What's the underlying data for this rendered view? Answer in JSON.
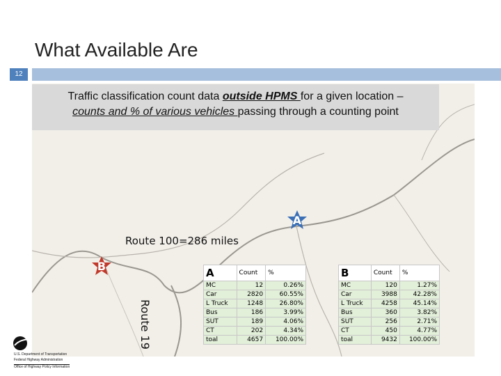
{
  "slide": {
    "title": "What Available Are",
    "number": "12"
  },
  "callout": {
    "line1_prefix": "Traffic classification count data ",
    "line1_underlined": "outside HPMS ",
    "line1_suffix": "for a given location –",
    "line2_underlined": "counts and % of various vehicles ",
    "line2_suffix": "passing through a counting point"
  },
  "map": {
    "route100_label": "Route 100=286 miles",
    "route19_label": "Route 19",
    "marker_a": "A",
    "marker_b": "B"
  },
  "table_a": {
    "title": "A",
    "col_count": "Count",
    "col_pct": "%",
    "rows": [
      {
        "label": "MC",
        "count": "12",
        "pct": "0.26%"
      },
      {
        "label": "Car",
        "count": "2820",
        "pct": "60.55%"
      },
      {
        "label": "L Truck",
        "count": "1248",
        "pct": "26.80%"
      },
      {
        "label": "Bus",
        "count": "186",
        "pct": "3.99%"
      },
      {
        "label": "SUT",
        "count": "189",
        "pct": "4.06%"
      },
      {
        "label": "CT",
        "count": "202",
        "pct": "4.34%"
      },
      {
        "label": "toal",
        "count": "4657",
        "pct": "100.00%"
      }
    ]
  },
  "table_b": {
    "title": "B",
    "col_count": "Count",
    "col_pct": "%",
    "rows": [
      {
        "label": "MC",
        "count": "120",
        "pct": "1.27%"
      },
      {
        "label": "Car",
        "count": "3988",
        "pct": "42.28%"
      },
      {
        "label": "L Truck",
        "count": "4258",
        "pct": "45.14%"
      },
      {
        "label": "Bus",
        "count": "360",
        "pct": "3.82%"
      },
      {
        "label": "SUT",
        "count": "256",
        "pct": "2.71%"
      },
      {
        "label": "CT",
        "count": "450",
        "pct": "4.77%"
      },
      {
        "label": "toal",
        "count": "9432",
        "pct": "100.00%"
      }
    ]
  },
  "logo": {
    "line1": "U.S. Department of Transportation",
    "line2": "Federal Highway Administration",
    "line3": "Office of Highway Policy Information"
  },
  "colors": {
    "accent_bar": "#a6bfdc",
    "slide_number_bg": "#4f81bd",
    "marker_fill": "#3b6fb6",
    "marker_b_fill": "#c0392b",
    "table_fill": "#e2efd9"
  }
}
